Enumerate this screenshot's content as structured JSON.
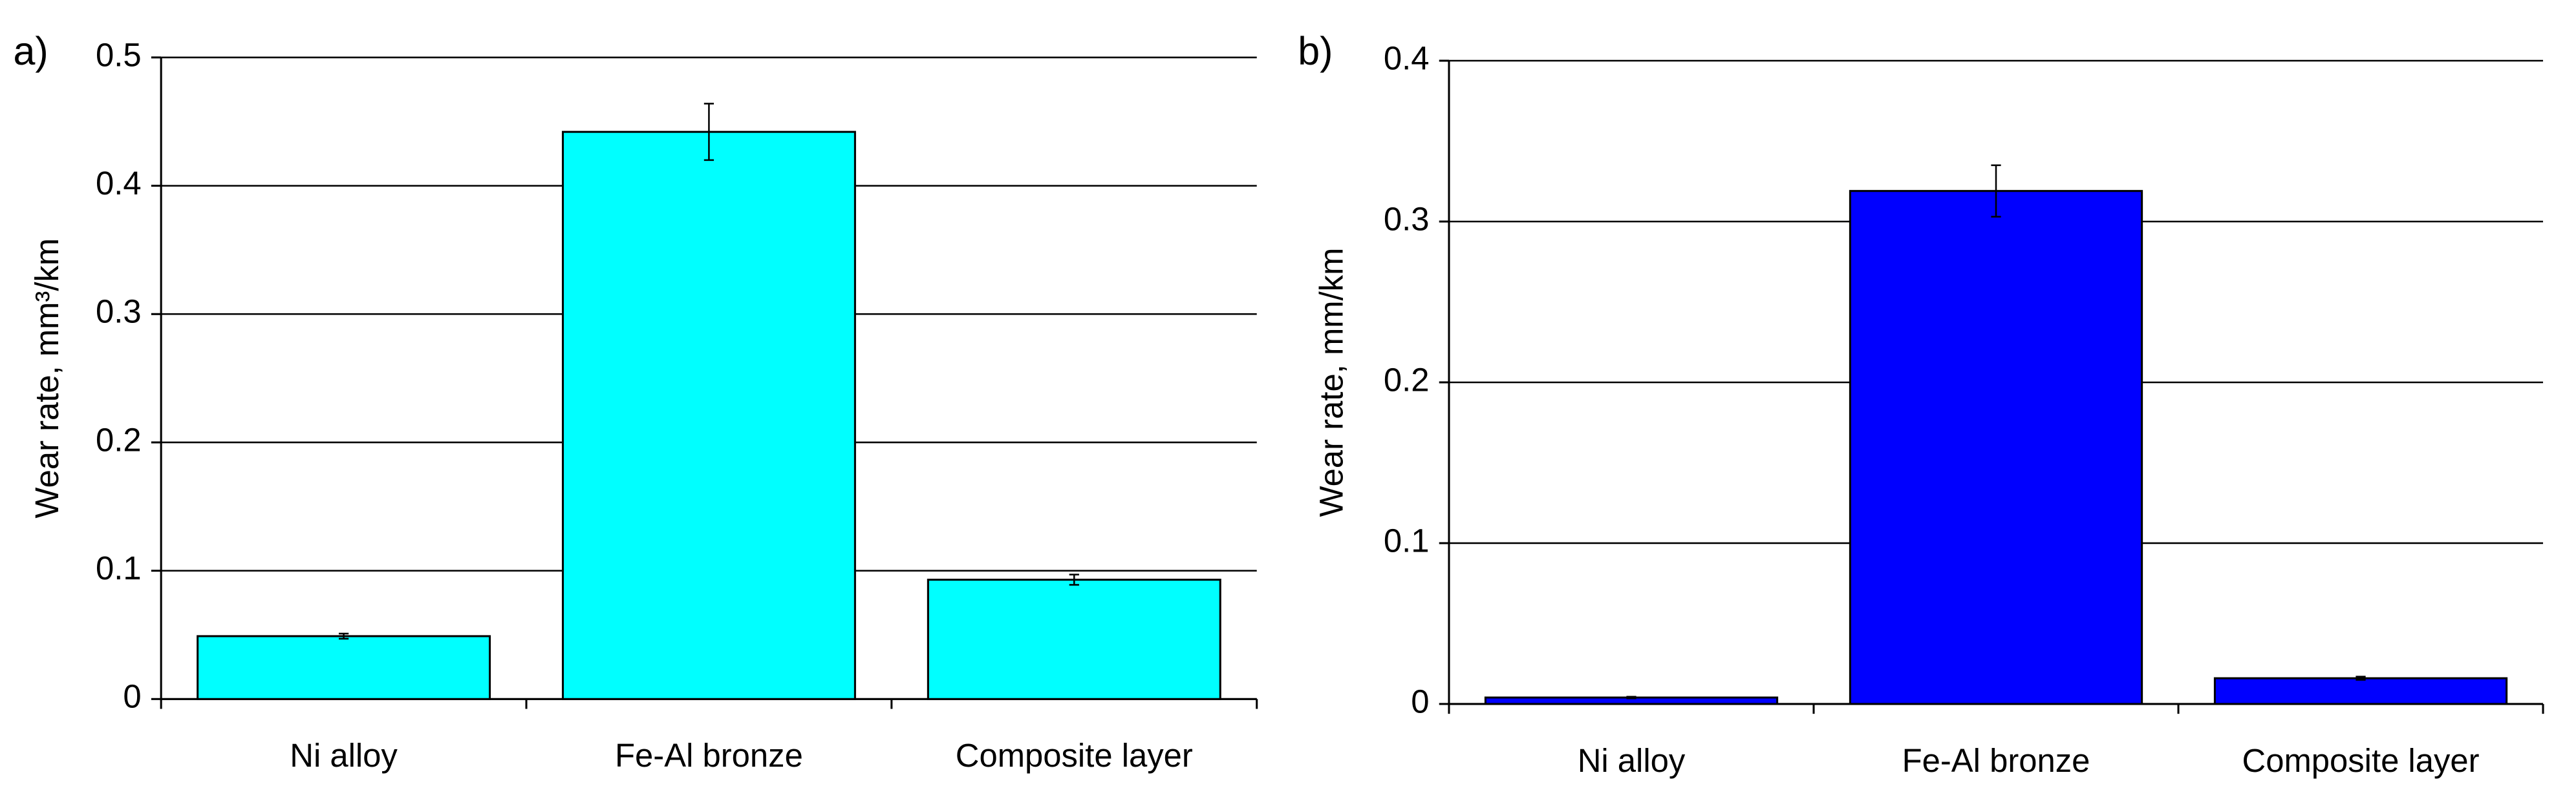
{
  "chart_data": [
    {
      "type": "bar",
      "panel_label": "a)",
      "ylabel": "Wear rate, mm³/km",
      "categories": [
        "Ni alloy",
        "Fe-Al bronze",
        "Composite layer"
      ],
      "values": [
        0.049,
        0.442,
        0.093
      ],
      "errors": [
        0.002,
        0.022,
        0.004
      ],
      "color": "#00ffff",
      "ylim": [
        0,
        0.5
      ],
      "yticks": [
        0,
        0.1,
        0.2,
        0.3,
        0.4,
        0.5
      ],
      "grid": true
    },
    {
      "type": "bar",
      "panel_label": "b)",
      "ylabel": "Wear rate, mm/km",
      "categories": [
        "Ni alloy",
        "Fe-Al bronze",
        "Composite layer"
      ],
      "values": [
        0.004,
        0.319,
        0.016
      ],
      "errors": [
        0.0005,
        0.016,
        0.001
      ],
      "color": "#0000ff",
      "ylim": [
        0,
        0.4
      ],
      "yticks": [
        0,
        0.1,
        0.2,
        0.3,
        0.4
      ],
      "grid": true
    }
  ]
}
